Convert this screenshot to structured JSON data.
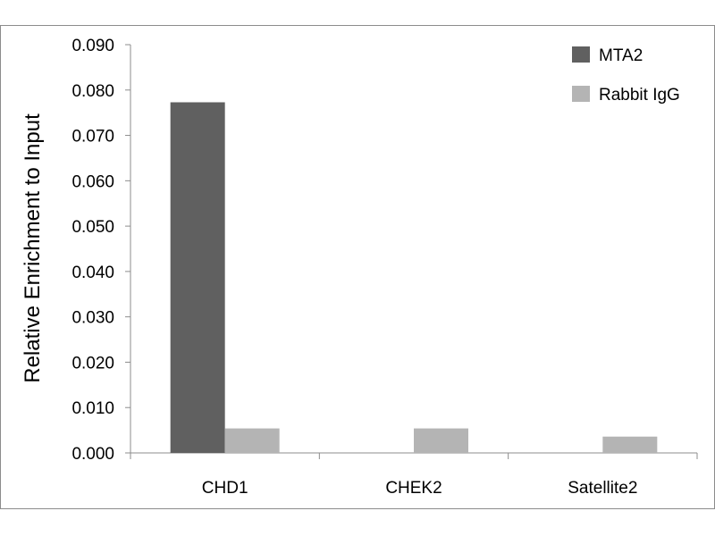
{
  "chart_data": {
    "type": "bar",
    "title": "",
    "xlabel": "",
    "ylabel": "Relative Enrichment to Input",
    "categories": [
      "CHD1",
      "CHEK2",
      "Satellite2"
    ],
    "series": [
      {
        "name": "MTA2",
        "color": "#606060",
        "values": [
          0.0773,
          0.0,
          0.0
        ]
      },
      {
        "name": "Rabbit IgG",
        "color": "#b4b4b4",
        "values": [
          0.0054,
          0.0054,
          0.0036
        ]
      }
    ],
    "ylim": [
      0,
      0.09
    ],
    "yticks": [
      "0.000",
      "0.010",
      "0.020",
      "0.030",
      "0.040",
      "0.050",
      "0.060",
      "0.070",
      "0.080",
      "0.090"
    ],
    "grid": false,
    "legend_position": "top-right"
  }
}
